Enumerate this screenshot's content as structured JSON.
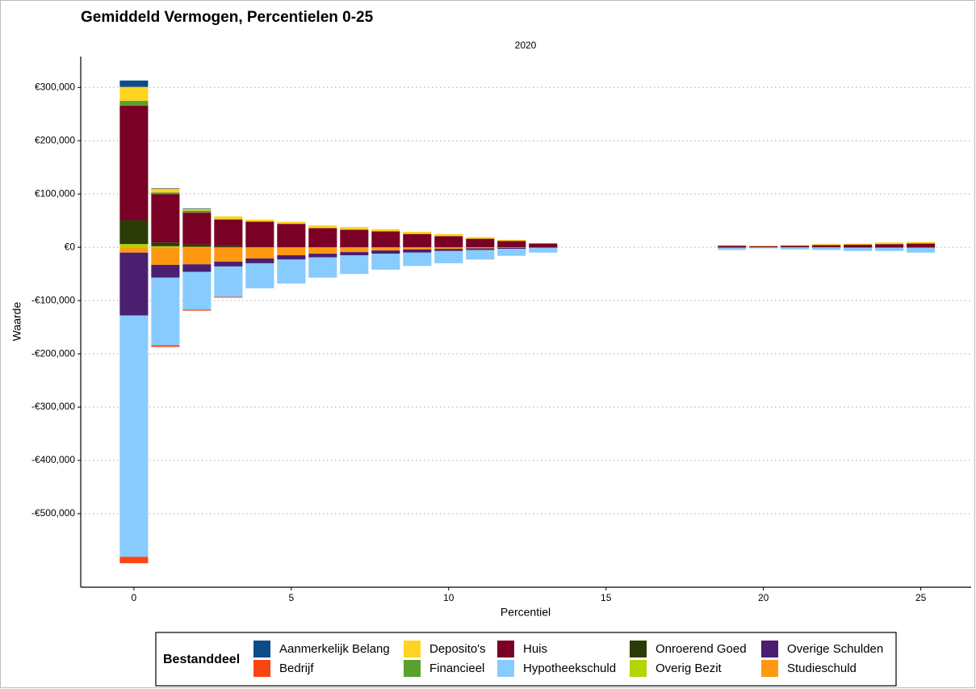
{
  "chart_data": {
    "type": "stacked-bar",
    "title": "Gemiddeld Vermogen, Percentielen 0-25",
    "facet_label": "2020",
    "x_label": "Percentiel",
    "y_label": "Waarde",
    "legend_title": "Bestanddeel",
    "x": [
      0,
      1,
      2,
      3,
      4,
      5,
      6,
      7,
      8,
      9,
      10,
      11,
      12,
      13,
      19,
      20,
      21,
      22,
      23,
      24,
      25
    ],
    "xlim": [
      -1.69,
      26.6
    ],
    "xticks": [
      0,
      5,
      10,
      15,
      20,
      25
    ],
    "ylim": [
      -638000,
      358000
    ],
    "yticks": [
      {
        "value": -500000,
        "label": "-€500,000"
      },
      {
        "value": -400000,
        "label": "-€400,000"
      },
      {
        "value": -300000,
        "label": "-€300,000"
      },
      {
        "value": -200000,
        "label": "-€200,000"
      },
      {
        "value": -100000,
        "label": "-€100,000"
      },
      {
        "value": 0,
        "label": "€0"
      },
      {
        "value": 100000,
        "label": "€100,000"
      },
      {
        "value": 200000,
        "label": "€200,000"
      },
      {
        "value": 300000,
        "label": "€300,000"
      }
    ],
    "grid": true,
    "series": [
      {
        "name": "Aanmerkelijk Belang",
        "color": "#0b4d8b",
        "values": [
          12000,
          1000,
          1000,
          0,
          0,
          0,
          0,
          0,
          0,
          0,
          0,
          0,
          0,
          0,
          0,
          0,
          0,
          0,
          0,
          0,
          0
        ]
      },
      {
        "name": "Bedrijf",
        "color": "#fb4511",
        "values": [
          -12000,
          -3000,
          -2000,
          -1500,
          0,
          0,
          0,
          0,
          0,
          0,
          0,
          0,
          0,
          0,
          0,
          0,
          0,
          0,
          0,
          0,
          0
        ]
      },
      {
        "name": "Deposito's",
        "color": "#ffd320",
        "values": [
          26000,
          7000,
          3000,
          5000,
          4000,
          4000,
          5000,
          5000,
          4000,
          4000,
          4000,
          3000,
          2000,
          1000,
          1000,
          1000,
          1000,
          2000,
          2000,
          3000,
          3000
        ]
      },
      {
        "name": "Financieel",
        "color": "#5aa02c",
        "values": [
          9000,
          3000,
          4000,
          1000,
          0,
          0,
          0,
          0,
          0,
          0,
          0,
          0,
          0,
          0,
          0,
          0,
          0,
          0,
          0,
          0,
          0
        ]
      },
      {
        "name": "Huis",
        "color": "#7a0026",
        "values": [
          215000,
          91000,
          60000,
          50000,
          47000,
          44000,
          36000,
          33000,
          30000,
          25000,
          21000,
          16000,
          12000,
          7000,
          3000,
          2000,
          3000,
          4000,
          5000,
          6000,
          7000
        ]
      },
      {
        "name": "Hypotheekschuld",
        "color": "#87cbff",
        "values": [
          -453000,
          -127000,
          -71000,
          -57000,
          -47000,
          -45000,
          -38000,
          -35000,
          -30000,
          -25000,
          -23000,
          -18000,
          -13000,
          -9000,
          -4000,
          -2000,
          -4000,
          -5000,
          -6000,
          -6000,
          -9000
        ]
      },
      {
        "name": "Onroerend Goed",
        "color": "#2d3b06",
        "values": [
          45000,
          7000,
          4000,
          2000,
          1000,
          0,
          0,
          0,
          0,
          0,
          0,
          0,
          0,
          0,
          0,
          0,
          0,
          0,
          0,
          0,
          0
        ]
      },
      {
        "name": "Overig Bezit",
        "color": "#b5d400",
        "values": [
          6000,
          2000,
          1000,
          0,
          0,
          0,
          0,
          0,
          0,
          0,
          0,
          0,
          0,
          0,
          0,
          0,
          0,
          0,
          0,
          0,
          0
        ]
      },
      {
        "name": "Overige Schulden",
        "color": "#4a1f6f",
        "values": [
          -118000,
          -24000,
          -14000,
          -9000,
          -9000,
          -8000,
          -7000,
          -6000,
          -6000,
          -6000,
          -4000,
          -3000,
          -2000,
          -1000,
          -1000,
          0,
          0,
          0,
          -1000,
          -1000,
          -1000
        ]
      },
      {
        "name": "Studieschuld",
        "color": "#ff9912",
        "values": [
          -10000,
          -33000,
          -32000,
          -27000,
          -21000,
          -15000,
          -12000,
          -9000,
          -6000,
          -4000,
          -3000,
          -2000,
          -1000,
          0,
          0,
          0,
          0,
          0,
          0,
          0,
          0
        ]
      }
    ]
  }
}
